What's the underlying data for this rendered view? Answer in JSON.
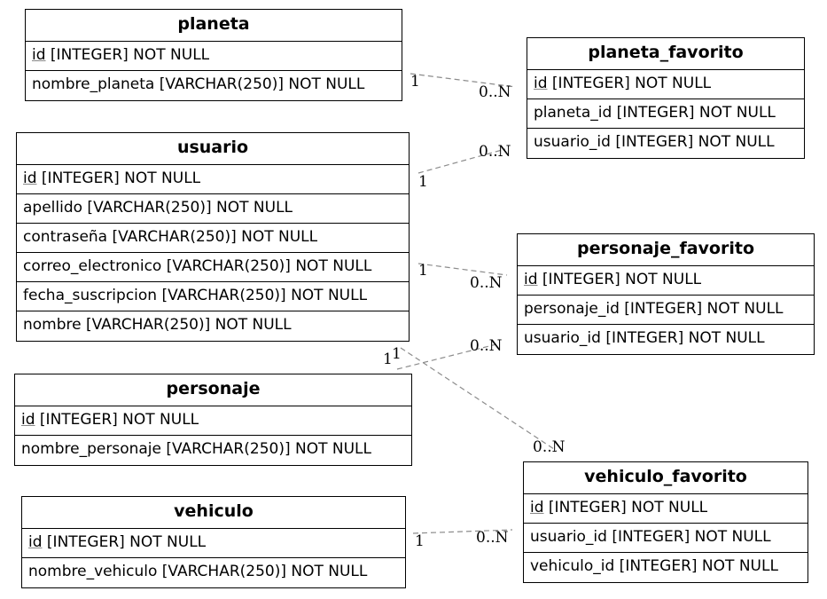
{
  "entities": {
    "planeta": {
      "name": "planeta",
      "fields": [
        {
          "pk": "id",
          "rest": " [INTEGER] NOT NULL"
        },
        {
          "pk": "",
          "rest": "nombre_planeta [VARCHAR(250)] NOT NULL"
        }
      ]
    },
    "planeta_favorito": {
      "name": "planeta_favorito",
      "fields": [
        {
          "pk": "id",
          "rest": " [INTEGER] NOT NULL"
        },
        {
          "pk": "",
          "rest": "planeta_id [INTEGER] NOT NULL"
        },
        {
          "pk": "",
          "rest": "usuario_id [INTEGER] NOT NULL"
        }
      ]
    },
    "usuario": {
      "name": "usuario",
      "fields": [
        {
          "pk": "id",
          "rest": " [INTEGER] NOT NULL"
        },
        {
          "pk": "",
          "rest": "apellido [VARCHAR(250)] NOT NULL"
        },
        {
          "pk": "",
          "rest": "contraseña [VARCHAR(250)] NOT NULL"
        },
        {
          "pk": "",
          "rest": "correo_electronico [VARCHAR(250)] NOT NULL"
        },
        {
          "pk": "",
          "rest": "fecha_suscripcion [VARCHAR(250)] NOT NULL"
        },
        {
          "pk": "",
          "rest": "nombre [VARCHAR(250)] NOT NULL"
        }
      ]
    },
    "personaje_favorito": {
      "name": "personaje_favorito",
      "fields": [
        {
          "pk": "id",
          "rest": " [INTEGER] NOT NULL"
        },
        {
          "pk": "",
          "rest": "personaje_id [INTEGER] NOT NULL"
        },
        {
          "pk": "",
          "rest": "usuario_id [INTEGER] NOT NULL"
        }
      ]
    },
    "personaje": {
      "name": "personaje",
      "fields": [
        {
          "pk": "id",
          "rest": " [INTEGER] NOT NULL"
        },
        {
          "pk": "",
          "rest": "nombre_personaje [VARCHAR(250)] NOT NULL"
        }
      ]
    },
    "vehiculo": {
      "name": "vehiculo",
      "fields": [
        {
          "pk": "id",
          "rest": " [INTEGER] NOT NULL"
        },
        {
          "pk": "",
          "rest": "nombre_vehiculo [VARCHAR(250)] NOT NULL"
        }
      ]
    },
    "vehiculo_favorito": {
      "name": "vehiculo_favorito",
      "fields": [
        {
          "pk": "id",
          "rest": " [INTEGER] NOT NULL"
        },
        {
          "pk": "",
          "rest": "usuario_id [INTEGER] NOT NULL"
        },
        {
          "pk": "",
          "rest": "vehiculo_id [INTEGER] NOT NULL"
        }
      ]
    }
  },
  "relationships": [
    {
      "from": "planeta",
      "to": "planeta_favorito",
      "from_card": "1",
      "to_card": "0..N"
    },
    {
      "from": "usuario",
      "to": "planeta_favorito",
      "from_card": "1",
      "to_card": "0..N"
    },
    {
      "from": "usuario",
      "to": "personaje_favorito",
      "from_card": "1",
      "to_card": "0..N"
    },
    {
      "from": "personaje",
      "to": "personaje_favorito",
      "from_card": "1",
      "to_card": "0..N"
    },
    {
      "from": "usuario",
      "to": "vehiculo_favorito",
      "from_card": "1",
      "to_card": "0..N"
    },
    {
      "from": "vehiculo",
      "to": "vehiculo_favorito",
      "from_card": "1",
      "to_card": "0..N"
    }
  ],
  "colors": {
    "edge": "#8c8c8c",
    "border": "#000000",
    "background": "#ffffff"
  }
}
